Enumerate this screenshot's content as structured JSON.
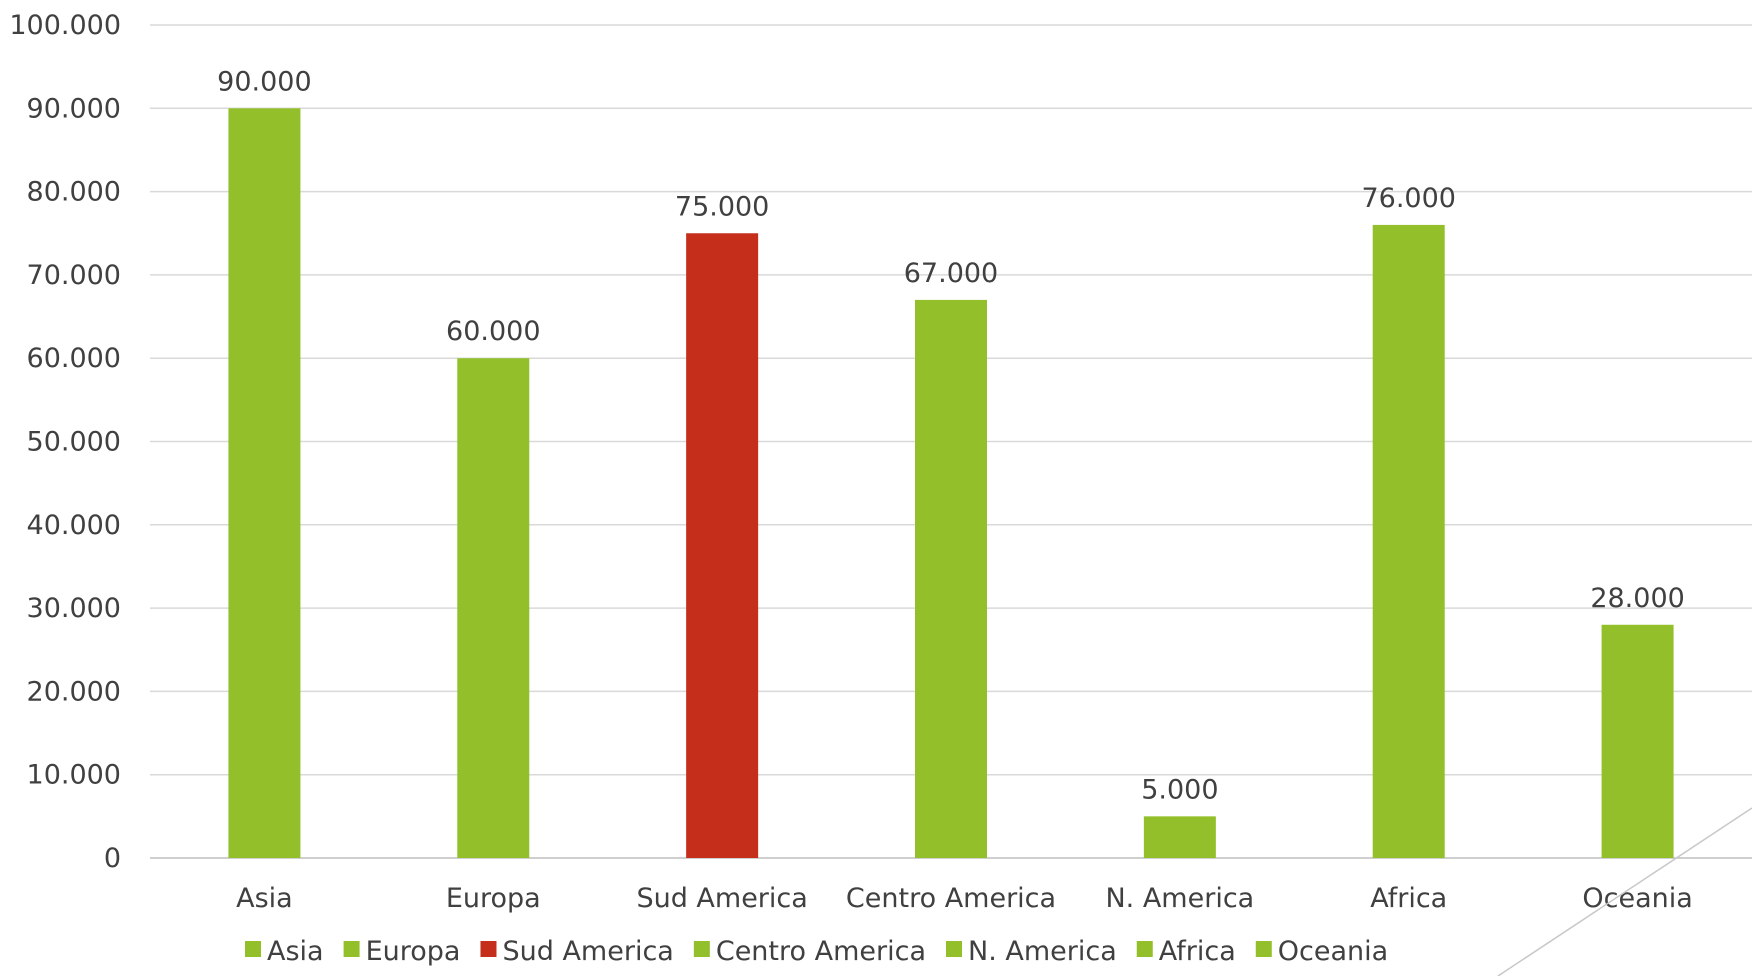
{
  "chart_data": {
    "type": "bar",
    "categories": [
      "Asia",
      "Europa",
      "Sud America",
      "Centro America",
      "N. America",
      "Africa",
      "Oceania"
    ],
    "values": [
      90000,
      60000,
      75000,
      67000,
      5000,
      76000,
      28000
    ],
    "value_labels": [
      "90.000",
      "60.000",
      "75.000",
      "67.000",
      "5.000",
      "76.000",
      "28.000"
    ],
    "bar_colors": [
      "#93c02a",
      "#93c02a",
      "#c42e1b",
      "#93c02a",
      "#93c02a",
      "#93c02a",
      "#93c02a"
    ],
    "ylim": [
      0,
      100000
    ],
    "yticks": [
      0,
      10000,
      20000,
      30000,
      40000,
      50000,
      60000,
      70000,
      80000,
      90000,
      100000
    ],
    "ytick_labels": [
      "0",
      "10.000",
      "20.000",
      "30.000",
      "40.000",
      "50.000",
      "60.000",
      "70.000",
      "80.000",
      "90.000",
      "100.000"
    ],
    "grid": true,
    "legend": {
      "placement": "bottom",
      "entries": [
        "Asia",
        "Europa",
        "Sud America",
        "Centro America",
        "N. America",
        "Africa",
        "Oceania"
      ]
    },
    "title": "",
    "xlabel": "",
    "ylabel": ""
  },
  "colors": {
    "accent_green": "#93c02a",
    "highlight_red": "#c42e1b",
    "gridline": "#d9d9d9",
    "text": "#404040"
  }
}
